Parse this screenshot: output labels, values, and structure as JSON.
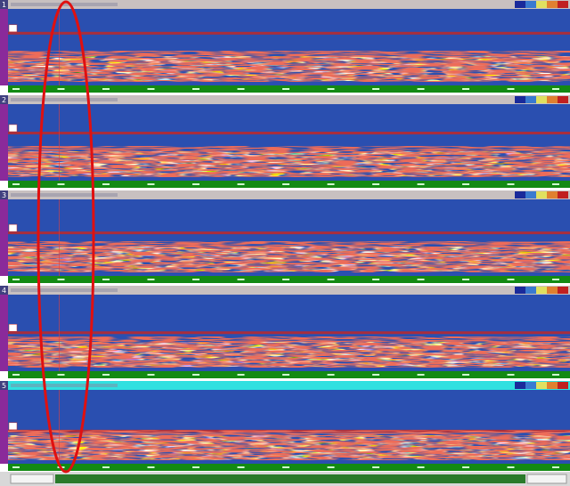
{
  "panels": [
    {
      "number": "1"
    },
    {
      "number": "2"
    },
    {
      "number": "3"
    },
    {
      "number": "4"
    },
    {
      "number": "5"
    }
  ]
}
